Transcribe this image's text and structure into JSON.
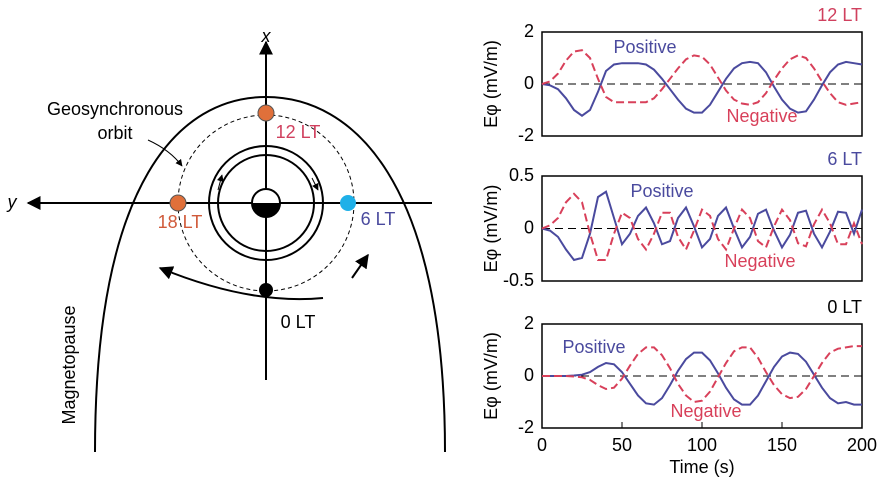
{
  "diagram": {
    "x_axis": "x",
    "y_axis": "y",
    "orbit_label": [
      "Geosynchronous",
      "orbit"
    ],
    "noon": "12 LT",
    "dusk": "18 LT",
    "dawn": "6 LT",
    "midnight": "0 LT",
    "boundary": "Magnetopause"
  },
  "chart_data": [
    {
      "type": "line",
      "title": "12 LT",
      "title_color": "#d0405e",
      "y_label": "Eφ (mV/m)",
      "x": [
        0,
        5,
        10,
        15,
        20,
        25,
        30,
        35,
        40,
        45,
        50,
        55,
        60,
        65,
        70,
        75,
        80,
        85,
        90,
        95,
        100,
        105,
        110,
        115,
        120,
        125,
        130,
        135,
        140,
        145,
        150,
        155,
        160,
        165,
        170,
        175,
        180,
        185,
        190,
        195,
        200
      ],
      "series": [
        {
          "name": "Positive",
          "color": "#4a4a9e",
          "dash": false,
          "values": [
            0,
            -0.05,
            -0.2,
            -0.55,
            -1.0,
            -1.22,
            -1.0,
            -0.3,
            0.5,
            0.75,
            0.8,
            0.8,
            0.8,
            0.75,
            0.55,
            0.2,
            -0.2,
            -0.6,
            -0.95,
            -1.1,
            -1.1,
            -0.8,
            -0.3,
            0.2,
            0.6,
            0.8,
            0.85,
            0.8,
            0.45,
            -0.1,
            -0.6,
            -0.95,
            -1.1,
            -1.05,
            -0.6,
            -0.05,
            0.45,
            0.75,
            0.85,
            0.8,
            0.75
          ]
        },
        {
          "name": "Negative",
          "color": "#d8405a",
          "dash": true,
          "values": [
            0,
            0.1,
            0.4,
            0.9,
            1.25,
            1.3,
            1.0,
            0.2,
            -0.5,
            -0.7,
            -0.7,
            -0.7,
            -0.7,
            -0.7,
            -0.55,
            -0.2,
            0.2,
            0.6,
            0.95,
            1.1,
            1.05,
            0.75,
            0.25,
            -0.25,
            -0.6,
            -0.75,
            -0.8,
            -0.7,
            -0.35,
            0.15,
            0.6,
            0.95,
            1.1,
            1.0,
            0.6,
            0.1,
            -0.35,
            -0.7,
            -0.8,
            -0.75,
            -0.7
          ]
        }
      ],
      "xlim": [
        0,
        200
      ],
      "ylim": [
        -2,
        2
      ],
      "yticks": [
        -2,
        0,
        2
      ]
    },
    {
      "type": "line",
      "title": "6 LT",
      "title_color": "#4a4a9e",
      "y_label": "Eφ (mV/m)",
      "x": [
        0,
        5,
        10,
        15,
        20,
        25,
        30,
        35,
        40,
        45,
        50,
        55,
        60,
        65,
        70,
        75,
        80,
        85,
        90,
        95,
        100,
        105,
        110,
        115,
        120,
        125,
        130,
        135,
        140,
        145,
        150,
        155,
        160,
        165,
        170,
        175,
        180,
        185,
        190,
        195,
        200
      ],
      "series": [
        {
          "name": "Positive",
          "color": "#4a4a9e",
          "dash": false,
          "values": [
            0,
            -0.02,
            -0.08,
            -0.2,
            -0.3,
            -0.28,
            -0.05,
            0.3,
            0.35,
            0.1,
            -0.15,
            -0.05,
            0.12,
            0.2,
            0.05,
            -0.15,
            -0.12,
            0.1,
            0.2,
            0.02,
            -0.18,
            -0.1,
            0.12,
            0.2,
            0,
            -0.18,
            -0.08,
            0.14,
            0.18,
            -0.02,
            -0.18,
            -0.06,
            0.15,
            0.17,
            -0.05,
            -0.18,
            -0.03,
            0.16,
            0.15,
            -0.05,
            0.18
          ]
        },
        {
          "name": "Negative",
          "color": "#d8405a",
          "dash": true,
          "values": [
            0,
            0.03,
            0.1,
            0.25,
            0.33,
            0.25,
            -0.05,
            -0.3,
            -0.3,
            -0.05,
            0.15,
            0.1,
            -0.1,
            -0.2,
            -0.05,
            0.15,
            0.15,
            -0.08,
            -0.2,
            -0.02,
            0.18,
            0.12,
            -0.1,
            -0.2,
            0,
            0.18,
            0.1,
            -0.12,
            -0.18,
            0.02,
            0.18,
            0.08,
            -0.14,
            -0.17,
            0.04,
            0.18,
            0.05,
            -0.15,
            -0.15,
            0.05,
            -0.15
          ]
        }
      ],
      "xlim": [
        0,
        200
      ],
      "ylim": [
        -0.5,
        0.5
      ],
      "yticks": [
        -0.5,
        0,
        0.5
      ]
    },
    {
      "type": "line",
      "title": "0 LT",
      "title_color": "#000000",
      "y_label": "Eφ (mV/m)",
      "x_label": "Time (s)",
      "x": [
        0,
        5,
        10,
        15,
        20,
        25,
        30,
        35,
        40,
        45,
        50,
        55,
        60,
        65,
        70,
        75,
        80,
        85,
        90,
        95,
        100,
        105,
        110,
        115,
        120,
        125,
        130,
        135,
        140,
        145,
        150,
        155,
        160,
        165,
        170,
        175,
        180,
        185,
        190,
        195,
        200
      ],
      "series": [
        {
          "name": "Positive",
          "color": "#4a4a9e",
          "dash": false,
          "values": [
            0,
            0,
            0,
            0,
            0.02,
            0.05,
            0.15,
            0.35,
            0.5,
            0.45,
            0.15,
            -0.3,
            -0.75,
            -1.05,
            -1.1,
            -0.85,
            -0.35,
            0.2,
            0.65,
            0.9,
            0.9,
            0.6,
            0.1,
            -0.45,
            -0.9,
            -1.1,
            -1.1,
            -0.75,
            -0.2,
            0.35,
            0.75,
            0.9,
            0.85,
            0.55,
            0.05,
            -0.45,
            -0.85,
            -1.05,
            -1.0,
            -1.1,
            -1.1
          ]
        },
        {
          "name": "Negative",
          "color": "#d8405a",
          "dash": true,
          "values": [
            0,
            0,
            0,
            0,
            -0.02,
            -0.05,
            -0.15,
            -0.35,
            -0.5,
            -0.45,
            -0.1,
            0.4,
            0.85,
            1.1,
            1.1,
            0.8,
            0.3,
            -0.3,
            -0.75,
            -1.0,
            -0.95,
            -0.6,
            -0.05,
            0.5,
            0.95,
            1.1,
            1.1,
            0.7,
            0.15,
            -0.35,
            -0.7,
            -0.85,
            -0.8,
            -0.5,
            0,
            0.5,
            0.9,
            1.05,
            1.1,
            1.15,
            1.15
          ]
        }
      ],
      "xlim": [
        0,
        200
      ],
      "ylim": [
        -2,
        2
      ],
      "yticks": [
        -2,
        0,
        2
      ],
      "xticks": [
        0,
        50,
        100,
        150,
        200
      ]
    }
  ]
}
